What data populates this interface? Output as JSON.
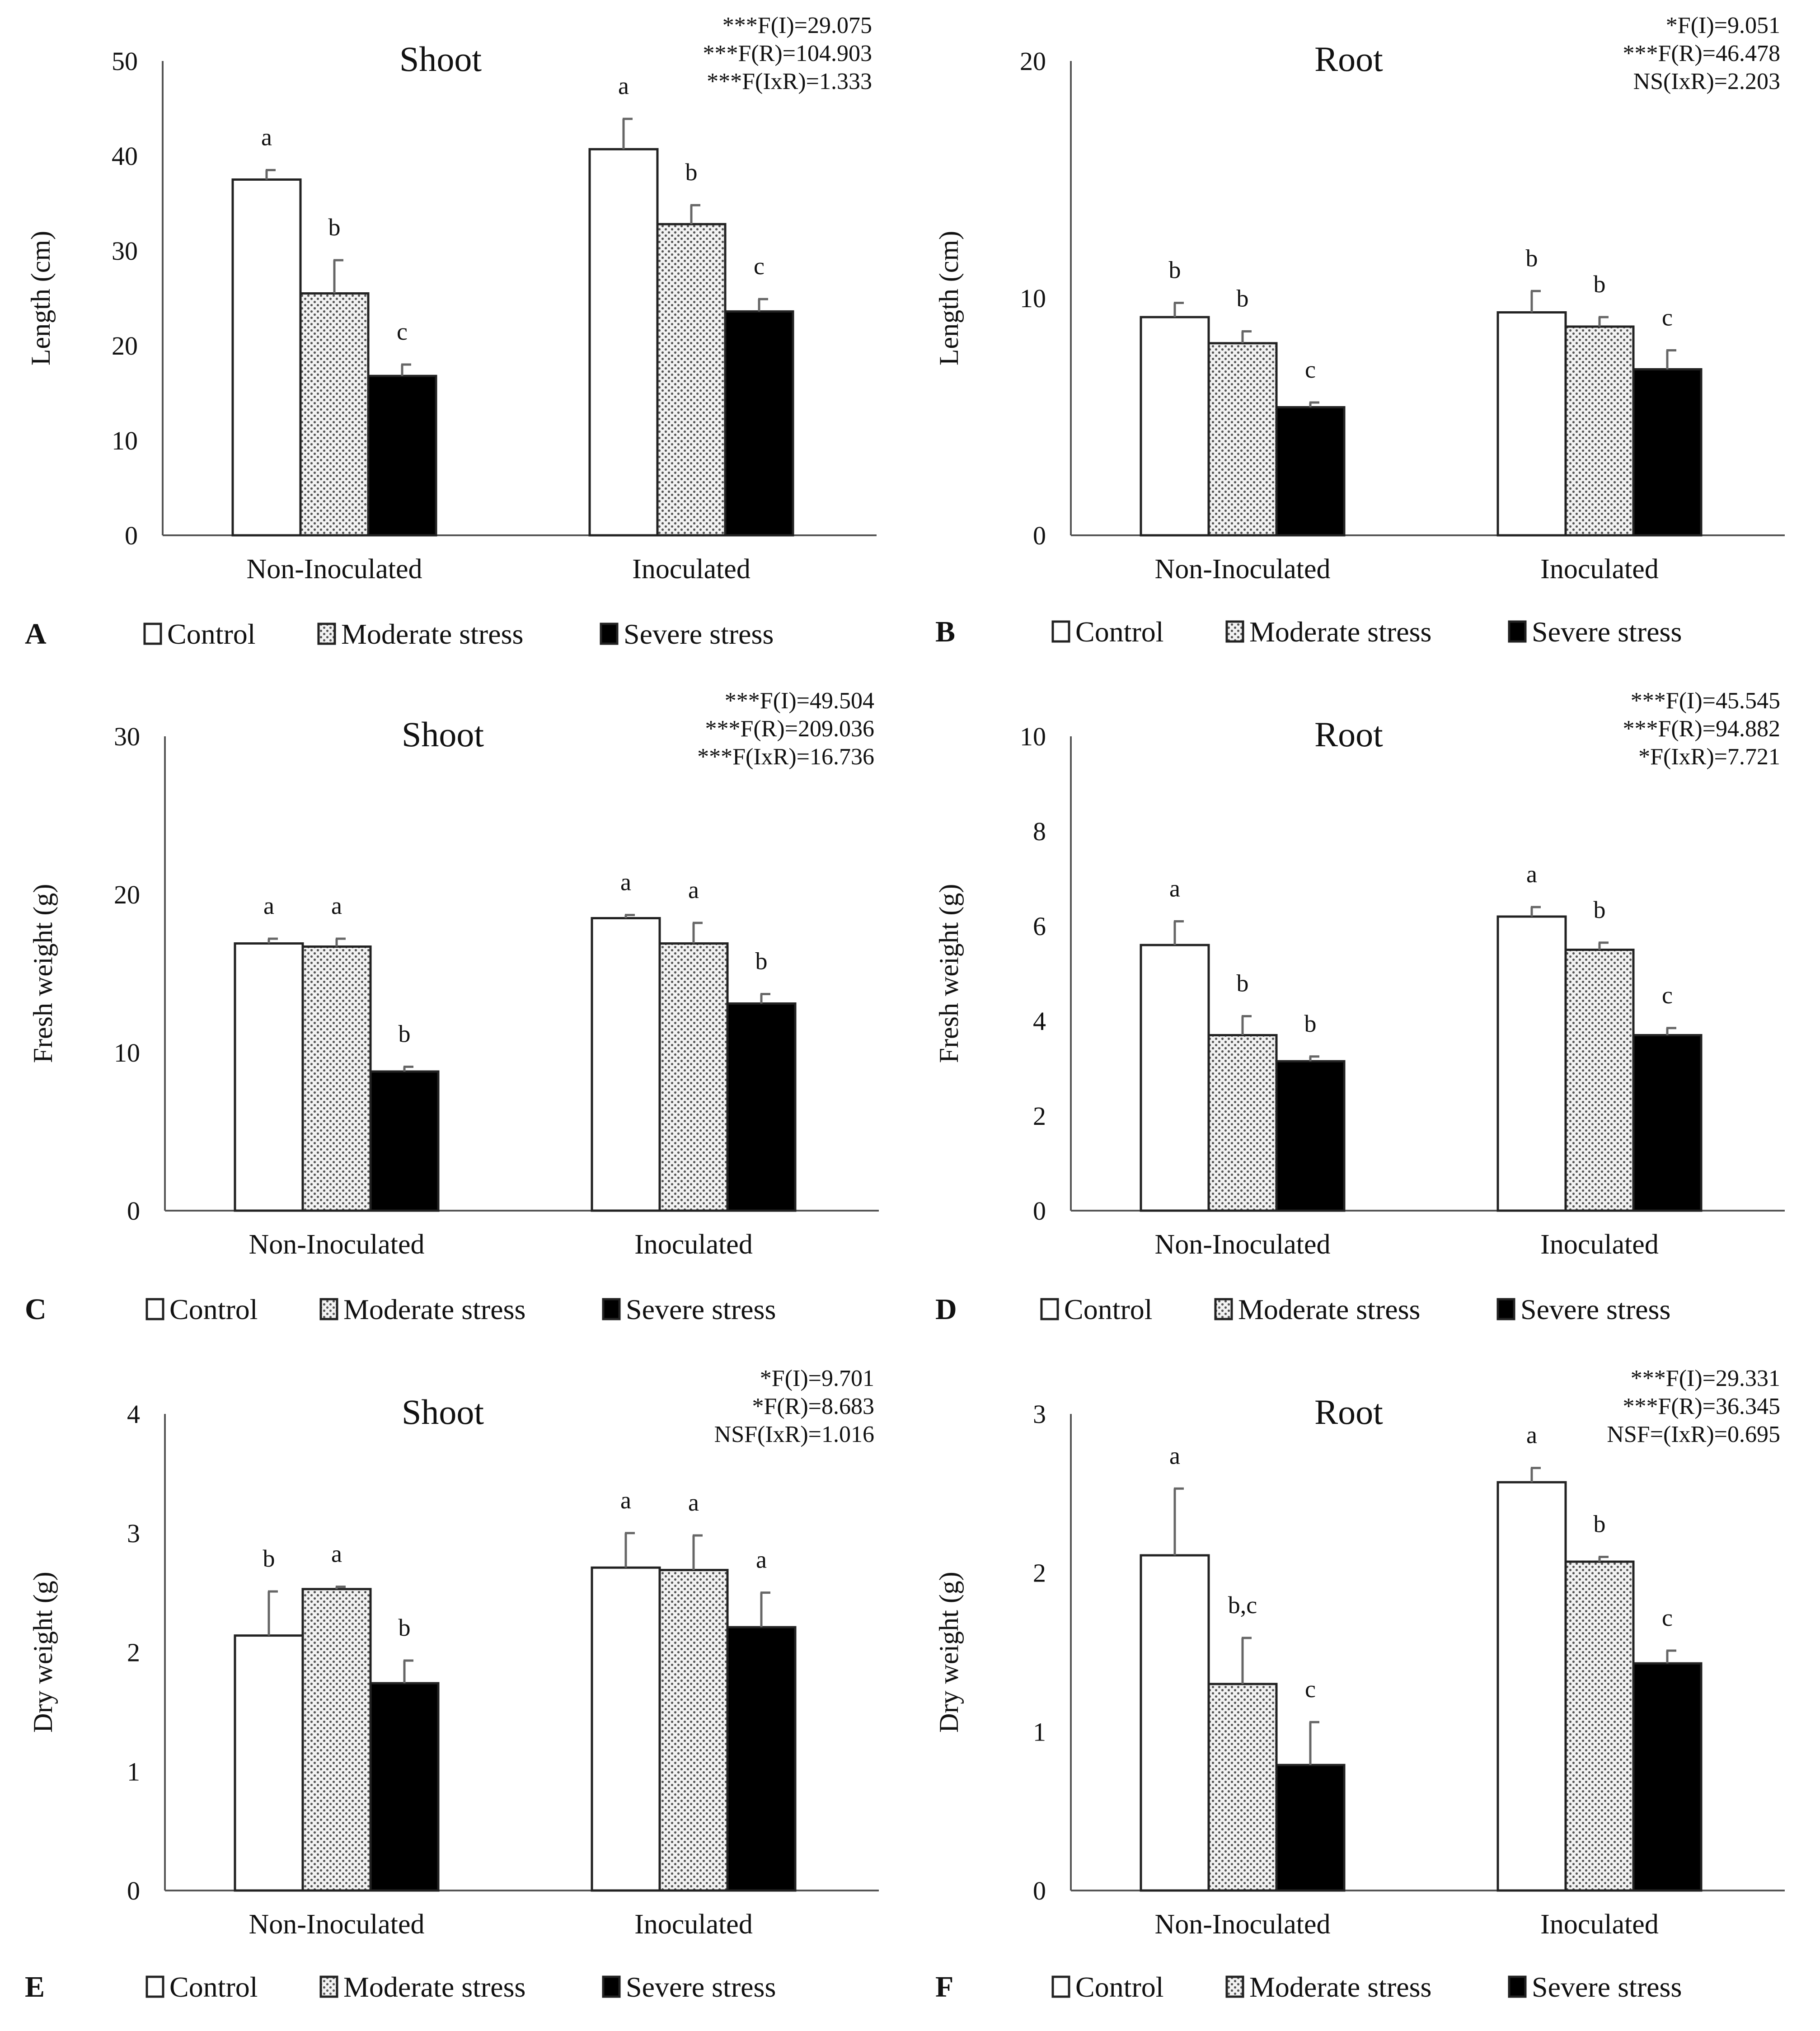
{
  "colors": {
    "control": "#ffffff",
    "moderate_base": "#f2f2f2",
    "moderate_dot": "#555555",
    "severe": "#000000",
    "axis": "#555555"
  },
  "chart_data": [
    {
      "panel": "A",
      "type": "bar",
      "title": "Shoot",
      "ylabel": "Length (cm)",
      "ylim": [
        0,
        50
      ],
      "yticks": [
        0,
        10,
        20,
        30,
        40,
        50
      ],
      "categories": [
        "Non-Inoculated",
        "Inoculated"
      ],
      "series": [
        {
          "name": "Control",
          "values": [
            37.5,
            40.7
          ],
          "errors": [
            1.0,
            3.2
          ],
          "letters": [
            "a",
            "a"
          ]
        },
        {
          "name": "Moderate stress",
          "values": [
            25.5,
            32.8
          ],
          "errors": [
            3.5,
            2.0
          ],
          "letters": [
            "b",
            "b"
          ]
        },
        {
          "name": "Severe stress",
          "values": [
            16.8,
            23.6
          ],
          "errors": [
            1.2,
            1.3
          ],
          "letters": [
            "c",
            "c"
          ]
        }
      ],
      "stats": [
        "***F(I)=29.075",
        "***F(R)=104.903",
        "***F(IxR)=1.333"
      ]
    },
    {
      "panel": "B",
      "type": "bar",
      "title": "Root",
      "ylabel": "Length (cm)",
      "ylim": [
        0,
        20
      ],
      "yticks": [
        0,
        10,
        20
      ],
      "categories": [
        "Non-Inoculated",
        "Inoculated"
      ],
      "series": [
        {
          "name": "Control",
          "values": [
            9.2,
            9.4
          ],
          "errors": [
            0.6,
            0.9
          ],
          "letters": [
            "b",
            "b"
          ]
        },
        {
          "name": "Moderate stress",
          "values": [
            8.1,
            8.8
          ],
          "errors": [
            0.5,
            0.4
          ],
          "letters": [
            "b",
            "b"
          ]
        },
        {
          "name": "Severe stress",
          "values": [
            5.4,
            7.0
          ],
          "errors": [
            0.2,
            0.8
          ],
          "letters": [
            "c",
            "c"
          ]
        }
      ],
      "stats": [
        "*F(I)=9.051",
        "***F(R)=46.478",
        "NS(IxR)=2.203"
      ]
    },
    {
      "panel": "C",
      "type": "bar",
      "title": "Shoot",
      "ylabel": "Fresh weight (g)",
      "ylim": [
        0,
        30
      ],
      "yticks": [
        0,
        10,
        20,
        30
      ],
      "categories": [
        "Non-Inoculated",
        "Inoculated"
      ],
      "series": [
        {
          "name": "Control",
          "values": [
            16.9,
            18.5
          ],
          "errors": [
            0.3,
            0.2
          ],
          "letters": [
            "a",
            "a"
          ]
        },
        {
          "name": "Moderate stress",
          "values": [
            16.7,
            16.9
          ],
          "errors": [
            0.5,
            1.3
          ],
          "letters": [
            "a",
            "a"
          ]
        },
        {
          "name": "Severe stress",
          "values": [
            8.8,
            13.1
          ],
          "errors": [
            0.3,
            0.6
          ],
          "letters": [
            "b",
            "b"
          ]
        }
      ],
      "stats": [
        "***F(I)=49.504",
        "***F(R)=209.036",
        "***F(IxR)=16.736"
      ]
    },
    {
      "panel": "D",
      "type": "bar",
      "title": "Root",
      "ylabel": "Fresh weight (g)",
      "ylim": [
        0,
        10
      ],
      "yticks": [
        0,
        2,
        4,
        6,
        8,
        10
      ],
      "categories": [
        "Non-Inoculated",
        "Inoculated"
      ],
      "series": [
        {
          "name": "Control",
          "values": [
            5.6,
            6.2
          ],
          "errors": [
            0.5,
            0.2
          ],
          "letters": [
            "a",
            "a"
          ]
        },
        {
          "name": "Moderate stress",
          "values": [
            3.7,
            5.5
          ],
          "errors": [
            0.4,
            0.15
          ],
          "letters": [
            "b",
            "b"
          ]
        },
        {
          "name": "Severe stress",
          "values": [
            3.15,
            3.7
          ],
          "errors": [
            0.1,
            0.15
          ],
          "letters": [
            "b",
            "c"
          ]
        }
      ],
      "stats": [
        "***F(I)=45.545",
        "***F(R)=94.882",
        "*F(IxR)=7.721"
      ]
    },
    {
      "panel": "E",
      "type": "bar",
      "title": "Shoot",
      "ylabel": "Dry weight (g)",
      "ylim": [
        0,
        4
      ],
      "yticks": [
        0,
        1,
        2,
        3,
        4
      ],
      "categories": [
        "Non-Inoculated",
        "Inoculated"
      ],
      "series": [
        {
          "name": "Control",
          "values": [
            2.14,
            2.71
          ],
          "errors": [
            0.37,
            0.29
          ],
          "letters": [
            "b",
            "a"
          ]
        },
        {
          "name": "Moderate stress",
          "values": [
            2.53,
            2.69
          ],
          "errors": [
            0.02,
            0.29
          ],
          "letters": [
            "a",
            "a"
          ]
        },
        {
          "name": "Severe stress",
          "values": [
            1.74,
            2.21
          ],
          "errors": [
            0.19,
            0.29
          ],
          "letters": [
            "b",
            "a"
          ]
        }
      ],
      "stats": [
        "*F(I)=9.701",
        "*F(R)=8.683",
        "NSF(IxR)=1.016"
      ]
    },
    {
      "panel": "F",
      "type": "bar",
      "title": "Root",
      "ylabel": "Dry weight (g)",
      "ylim": [
        0,
        3
      ],
      "yticks": [
        0,
        1,
        2,
        3
      ],
      "categories": [
        "Non-Inoculated",
        "Inoculated"
      ],
      "series": [
        {
          "name": "Control",
          "values": [
            2.11,
            2.57
          ],
          "errors": [
            0.42,
            0.09
          ],
          "letters": [
            "a",
            "a"
          ]
        },
        {
          "name": "Moderate stress",
          "values": [
            1.3,
            2.07
          ],
          "errors": [
            0.29,
            0.03
          ],
          "letters": [
            "b,c",
            "b"
          ]
        },
        {
          "name": "Severe stress",
          "values": [
            0.79,
            1.43
          ],
          "errors": [
            0.27,
            0.08
          ],
          "letters": [
            "c",
            "c"
          ]
        }
      ],
      "stats": [
        "***F(I)=29.331",
        "***F(R)=36.345",
        "NSF=(IxR)=0.695"
      ]
    }
  ],
  "legend": [
    "Control",
    "Moderate stress",
    "Severe stress"
  ]
}
